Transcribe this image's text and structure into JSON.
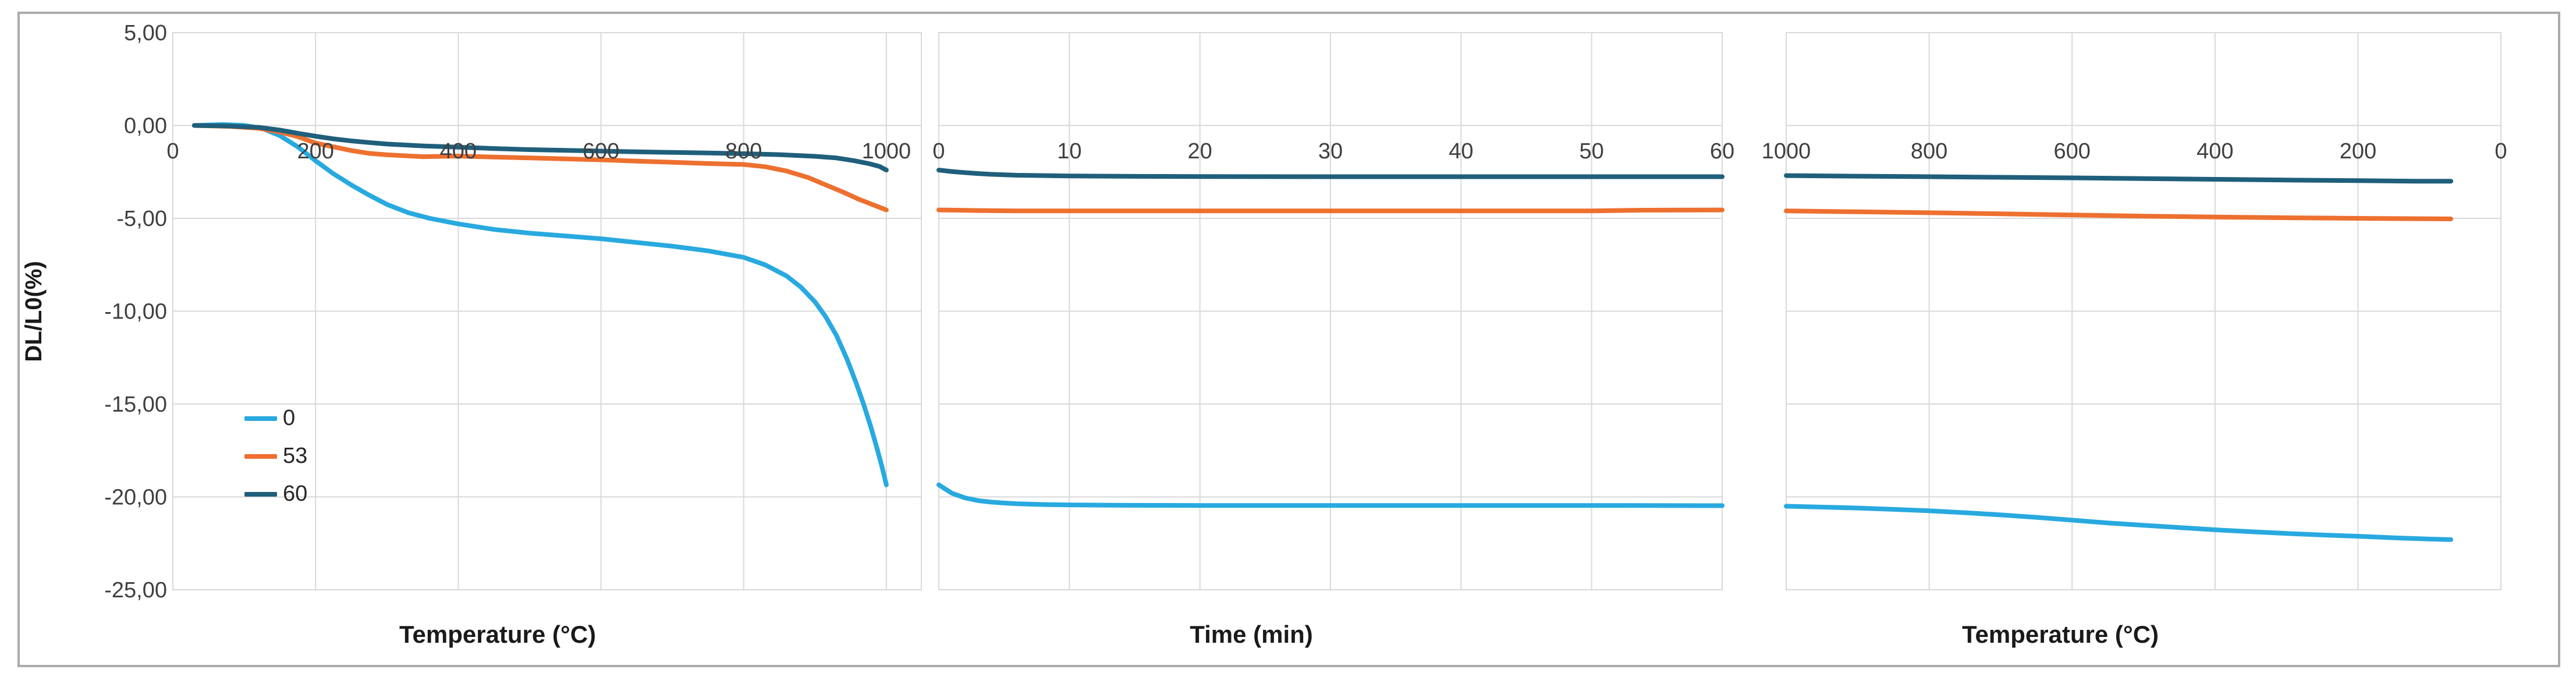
{
  "figure": {
    "background": "#FFFFFF",
    "border_color": "#ABABAB",
    "gridline_color": "#D9D9D9",
    "text_color": "#3F3F3F"
  },
  "chart_data": {
    "type": "line",
    "ylabel": "DL/L0(%)",
    "ylim": [
      -25,
      5
    ],
    "y_ticks": [
      5,
      0,
      -5,
      -10,
      -15,
      -20,
      -25
    ],
    "y_tick_labels": [
      "5,00",
      "0,00",
      "-5,00",
      "-10,00",
      "-15,00",
      "-20,00",
      "-25,00"
    ],
    "grid": true,
    "legend": {
      "position": "inside-left",
      "items": [
        {
          "label": "0",
          "color": "#28A9DF"
        },
        {
          "label": "53",
          "color": "#ED702F"
        },
        {
          "label": "60",
          "color": "#1F5F7B"
        }
      ]
    },
    "panels": [
      {
        "id": "heating",
        "xlabel": "Temperature (°C)",
        "x_left_value": 0,
        "x_right_value": 1049,
        "x_ticks": [
          0,
          200,
          400,
          600,
          800,
          1000
        ],
        "x_tick_labels": [
          "0",
          "200",
          "400",
          "600",
          "800",
          "1000"
        ],
        "series": [
          {
            "name": "0",
            "color": "#28A9DF",
            "points": [
              [
                30,
                0
              ],
              [
                70,
                0.05
              ],
              [
                100,
                0
              ],
              [
                125,
                -0.15
              ],
              [
                150,
                -0.55
              ],
              [
                175,
                -1.15
              ],
              [
                200,
                -1.9
              ],
              [
                225,
                -2.6
              ],
              [
                250,
                -3.2
              ],
              [
                275,
                -3.75
              ],
              [
                300,
                -4.25
              ],
              [
                330,
                -4.7
              ],
              [
                360,
                -5.0
              ],
              [
                400,
                -5.3
              ],
              [
                450,
                -5.6
              ],
              [
                500,
                -5.8
              ],
              [
                550,
                -5.95
              ],
              [
                600,
                -6.1
              ],
              [
                650,
                -6.3
              ],
              [
                700,
                -6.5
              ],
              [
                750,
                -6.75
              ],
              [
                800,
                -7.1
              ],
              [
                830,
                -7.5
              ],
              [
                860,
                -8.1
              ],
              [
                880,
                -8.7
              ],
              [
                900,
                -9.5
              ],
              [
                915,
                -10.3
              ],
              [
                930,
                -11.3
              ],
              [
                945,
                -12.6
              ],
              [
                958,
                -13.9
              ],
              [
                968,
                -15.0
              ],
              [
                978,
                -16.2
              ],
              [
                987,
                -17.4
              ],
              [
                994,
                -18.4
              ],
              [
                1000,
                -19.35
              ]
            ]
          },
          {
            "name": "53",
            "color": "#ED702F",
            "points": [
              [
                30,
                0
              ],
              [
                80,
                -0.05
              ],
              [
                120,
                -0.15
              ],
              [
                150,
                -0.35
              ],
              [
                175,
                -0.6
              ],
              [
                200,
                -0.95
              ],
              [
                225,
                -1.15
              ],
              [
                250,
                -1.35
              ],
              [
                275,
                -1.5
              ],
              [
                300,
                -1.58
              ],
              [
                350,
                -1.68
              ],
              [
                400,
                -1.65
              ],
              [
                450,
                -1.7
              ],
              [
                500,
                -1.75
              ],
              [
                550,
                -1.8
              ],
              [
                600,
                -1.85
              ],
              [
                650,
                -1.92
              ],
              [
                700,
                -1.98
              ],
              [
                750,
                -2.05
              ],
              [
                800,
                -2.1
              ],
              [
                830,
                -2.22
              ],
              [
                860,
                -2.45
              ],
              [
                890,
                -2.8
              ],
              [
                915,
                -3.2
              ],
              [
                940,
                -3.6
              ],
              [
                960,
                -3.95
              ],
              [
                980,
                -4.25
              ],
              [
                1000,
                -4.55
              ]
            ]
          },
          {
            "name": "60",
            "color": "#1F5F7B",
            "points": [
              [
                30,
                0
              ],
              [
                80,
                -0.03
              ],
              [
                120,
                -0.1
              ],
              [
                150,
                -0.25
              ],
              [
                175,
                -0.42
              ],
              [
                200,
                -0.58
              ],
              [
                225,
                -0.72
              ],
              [
                250,
                -0.83
              ],
              [
                275,
                -0.92
              ],
              [
                300,
                -1.0
              ],
              [
                350,
                -1.1
              ],
              [
                400,
                -1.17
              ],
              [
                450,
                -1.24
              ],
              [
                500,
                -1.3
              ],
              [
                550,
                -1.34
              ],
              [
                600,
                -1.38
              ],
              [
                650,
                -1.42
              ],
              [
                700,
                -1.45
              ],
              [
                750,
                -1.48
              ],
              [
                800,
                -1.52
              ],
              [
                850,
                -1.57
              ],
              [
                900,
                -1.66
              ],
              [
                930,
                -1.75
              ],
              [
                955,
                -1.9
              ],
              [
                975,
                -2.05
              ],
              [
                990,
                -2.2
              ],
              [
                1000,
                -2.4
              ]
            ]
          }
        ]
      },
      {
        "id": "isothermal-hold",
        "xlabel": "Time (min)",
        "x_left_value": 0,
        "x_right_value": 60,
        "x_ticks": [
          0,
          10,
          20,
          30,
          40,
          50,
          60
        ],
        "x_tick_labels": [
          "0",
          "10",
          "20",
          "30",
          "40",
          "50",
          "60"
        ],
        "series": [
          {
            "name": "0",
            "color": "#28A9DF",
            "points": [
              [
                0,
                -19.35
              ],
              [
                1,
                -19.8
              ],
              [
                2,
                -20.05
              ],
              [
                3,
                -20.2
              ],
              [
                4,
                -20.28
              ],
              [
                5,
                -20.33
              ],
              [
                6,
                -20.37
              ],
              [
                8,
                -20.41
              ],
              [
                10,
                -20.43
              ],
              [
                14,
                -20.45
              ],
              [
                20,
                -20.46
              ],
              [
                30,
                -20.46
              ],
              [
                40,
                -20.46
              ],
              [
                50,
                -20.46
              ],
              [
                60,
                -20.47
              ]
            ]
          },
          {
            "name": "53",
            "color": "#ED702F",
            "points": [
              [
                0,
                -4.55
              ],
              [
                3,
                -4.58
              ],
              [
                6,
                -4.6
              ],
              [
                10,
                -4.6
              ],
              [
                20,
                -4.6
              ],
              [
                30,
                -4.6
              ],
              [
                40,
                -4.6
              ],
              [
                50,
                -4.6
              ],
              [
                54,
                -4.56
              ],
              [
                60,
                -4.55
              ]
            ]
          },
          {
            "name": "60",
            "color": "#1F5F7B",
            "points": [
              [
                0,
                -2.4
              ],
              [
                1,
                -2.48
              ],
              [
                2,
                -2.54
              ],
              [
                3,
                -2.59
              ],
              [
                4,
                -2.63
              ],
              [
                6,
                -2.68
              ],
              [
                8,
                -2.7
              ],
              [
                10,
                -2.72
              ],
              [
                15,
                -2.74
              ],
              [
                20,
                -2.75
              ],
              [
                30,
                -2.76
              ],
              [
                40,
                -2.76
              ],
              [
                50,
                -2.76
              ],
              [
                60,
                -2.76
              ]
            ]
          }
        ]
      },
      {
        "id": "cooling",
        "xlabel": "Temperature (°C)",
        "x_left_value": 1000,
        "x_right_value": 0,
        "x_ticks": [
          1000,
          800,
          600,
          400,
          200,
          0
        ],
        "x_tick_labels": [
          "1000",
          "800",
          "600",
          "400",
          "200",
          "0"
        ],
        "series": [
          {
            "name": "0",
            "color": "#28A9DF",
            "points": [
              [
                1000,
                -20.5
              ],
              [
                950,
                -20.55
              ],
              [
                900,
                -20.6
              ],
              [
                850,
                -20.67
              ],
              [
                800,
                -20.75
              ],
              [
                750,
                -20.85
              ],
              [
                700,
                -20.97
              ],
              [
                650,
                -21.1
              ],
              [
                600,
                -21.25
              ],
              [
                550,
                -21.4
              ],
              [
                500,
                -21.53
              ],
              [
                450,
                -21.65
              ],
              [
                400,
                -21.77
              ],
              [
                350,
                -21.87
              ],
              [
                300,
                -21.97
              ],
              [
                250,
                -22.05
              ],
              [
                200,
                -22.12
              ],
              [
                150,
                -22.2
              ],
              [
                100,
                -22.27
              ],
              [
                70,
                -22.3
              ]
            ]
          },
          {
            "name": "53",
            "color": "#ED702F",
            "points": [
              [
                1000,
                -4.6
              ],
              [
                900,
                -4.65
              ],
              [
                800,
                -4.7
              ],
              [
                700,
                -4.76
              ],
              [
                600,
                -4.82
              ],
              [
                500,
                -4.88
              ],
              [
                400,
                -4.93
              ],
              [
                300,
                -4.97
              ],
              [
                200,
                -5.0
              ],
              [
                120,
                -5.02
              ],
              [
                70,
                -5.03
              ]
            ]
          },
          {
            "name": "60",
            "color": "#1F5F7B",
            "points": [
              [
                1000,
                -2.7
              ],
              [
                900,
                -2.73
              ],
              [
                800,
                -2.76
              ],
              [
                700,
                -2.79
              ],
              [
                600,
                -2.82
              ],
              [
                500,
                -2.86
              ],
              [
                400,
                -2.9
              ],
              [
                300,
                -2.94
              ],
              [
                200,
                -2.97
              ],
              [
                120,
                -3.0
              ],
              [
                70,
                -3.0
              ]
            ]
          }
        ]
      }
    ]
  }
}
